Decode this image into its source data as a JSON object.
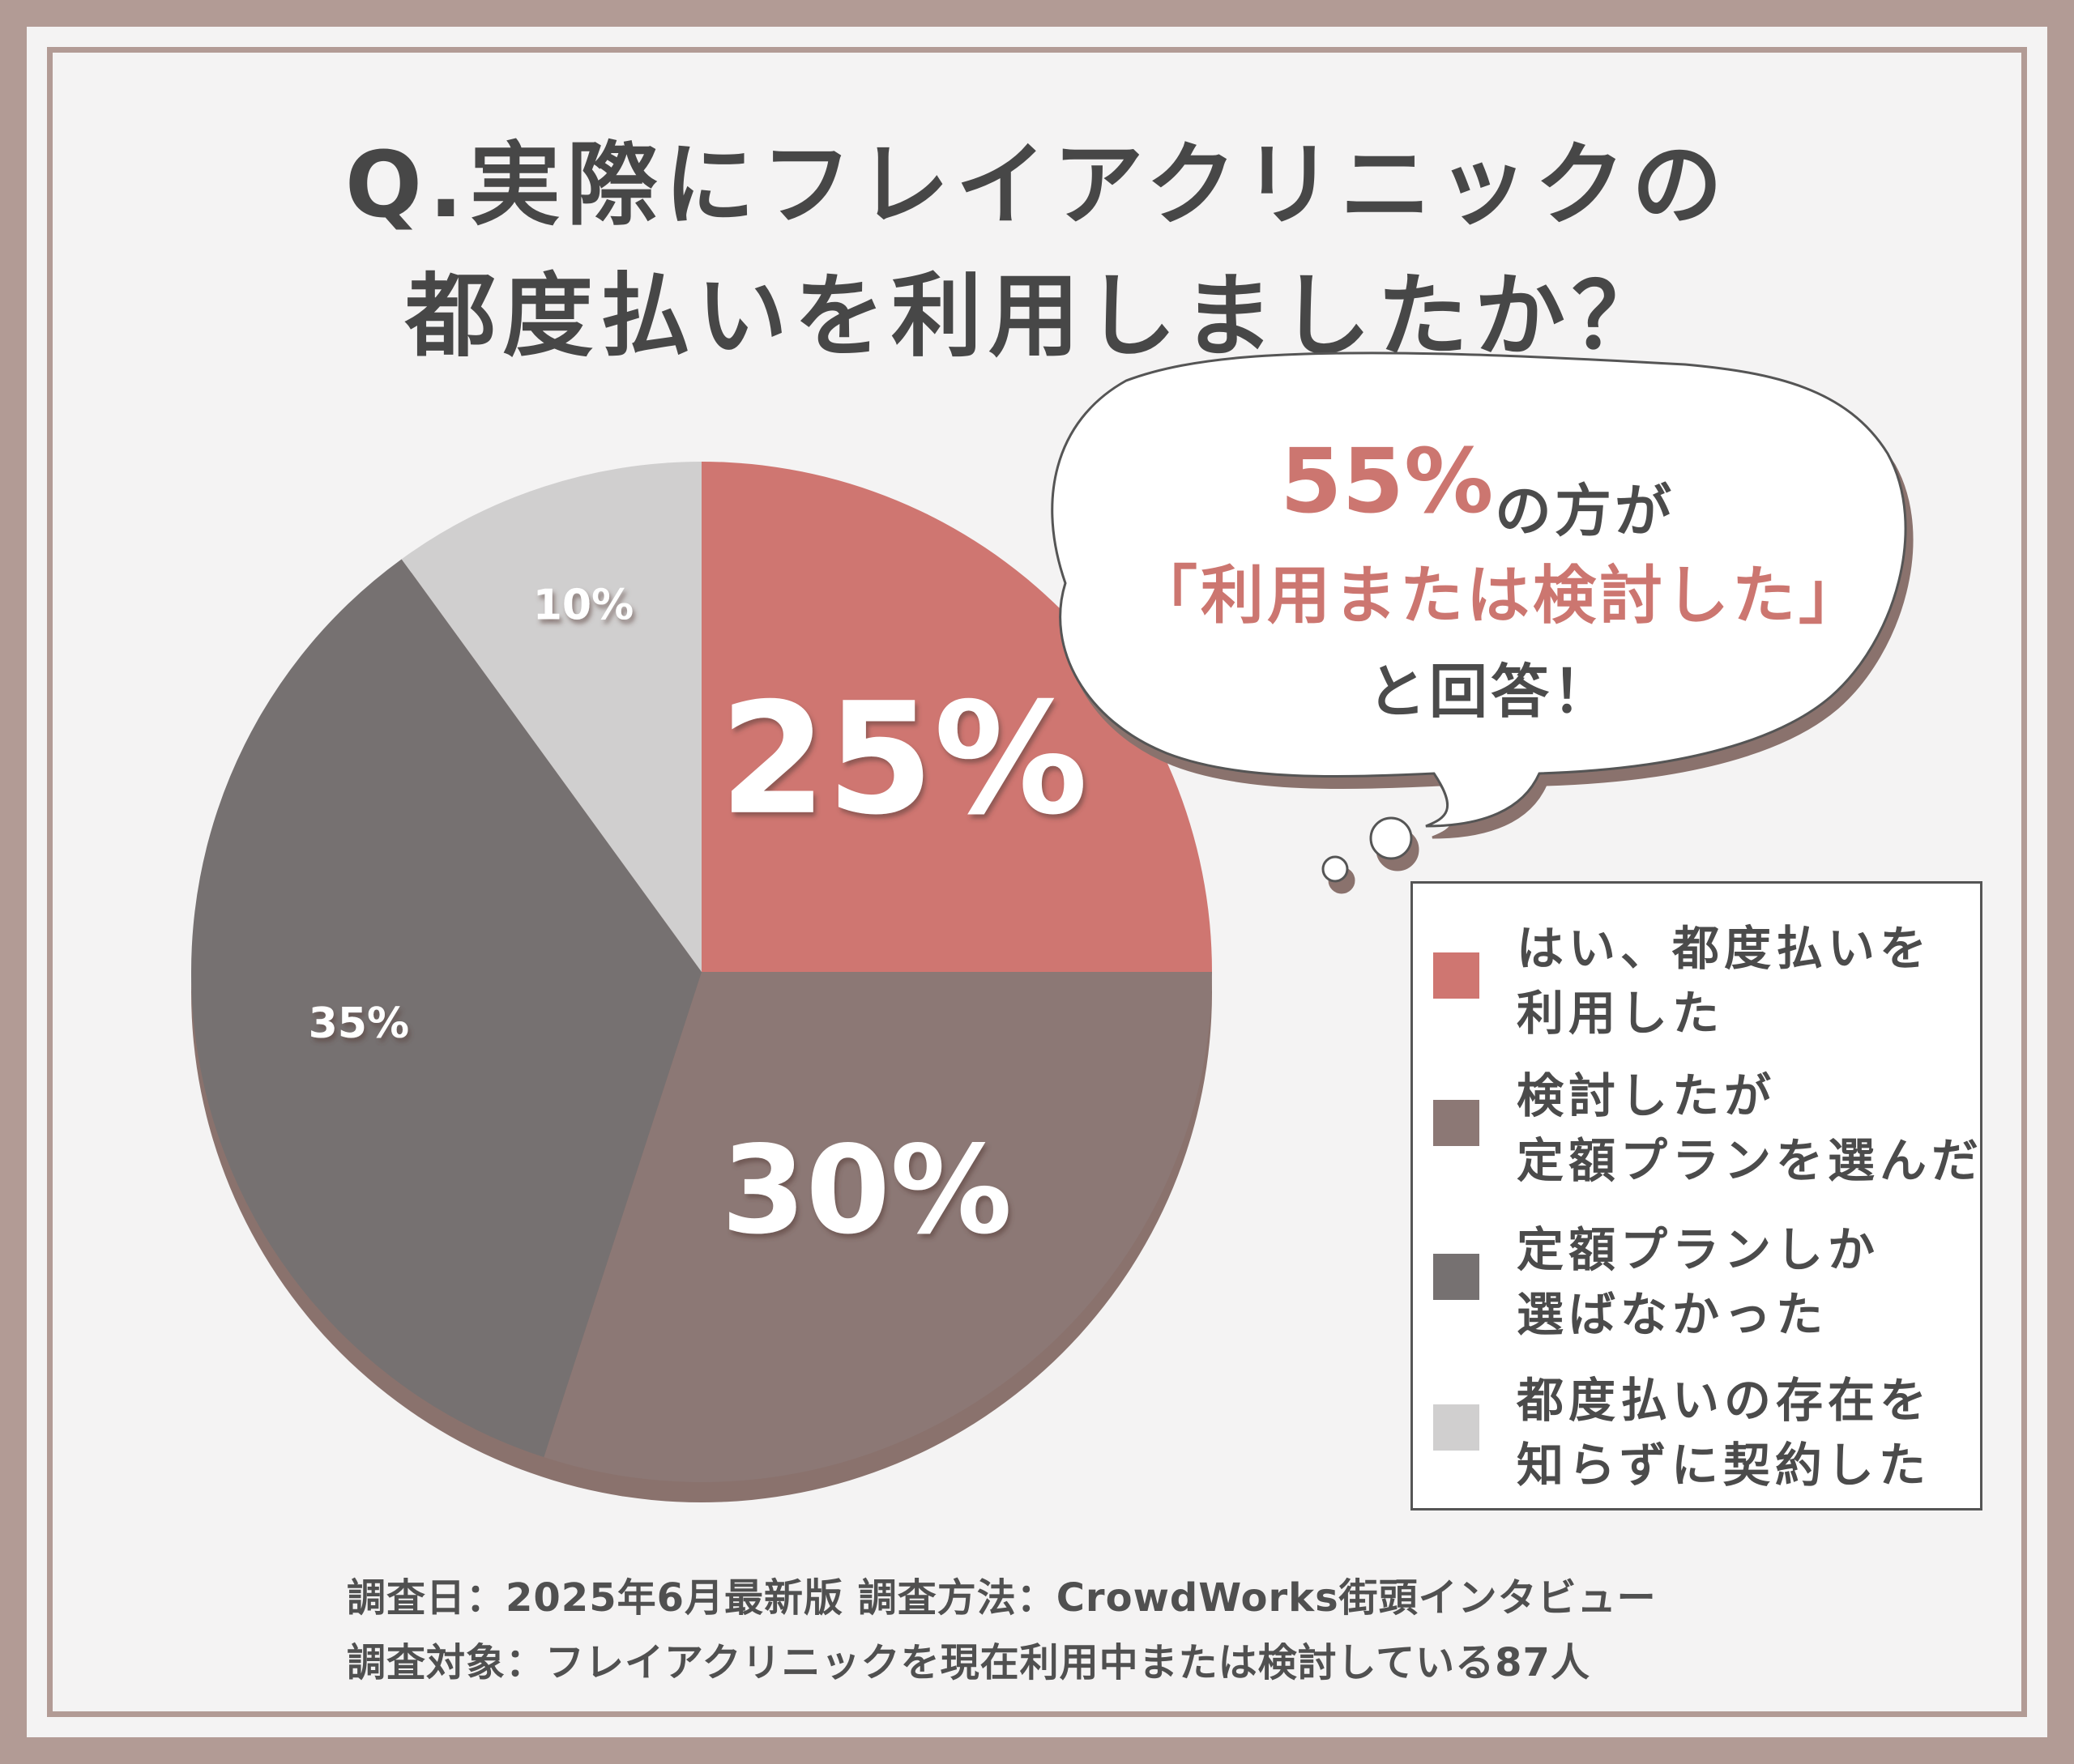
{
  "title": {
    "line1": "Q.実際にフレイアクリニックの",
    "line2": "都度払いを利用しましたか？"
  },
  "callout": {
    "percent": "55%",
    "line1_suffix": "の方が",
    "line2": "「利用または検討した」",
    "line3": "と回答！"
  },
  "chart_data": {
    "type": "pie",
    "categories": [
      "はい、都度払いを利用した",
      "検討したが定額プランを選んだ",
      "定額プランしか選ばなかった",
      "都度払いの存在を知らずに契約した"
    ],
    "values": [
      25,
      30,
      35,
      10
    ],
    "value_labels": [
      "25%",
      "30%",
      "35%",
      "10%"
    ],
    "colors": [
      "#cf7671",
      "#8c7875",
      "#767171",
      "#d0cfcf"
    ],
    "legend_placement": "right"
  },
  "legend": {
    "items": [
      {
        "lines": [
          "はい、都度払いを",
          "利用した"
        ],
        "color": "#cf7671"
      },
      {
        "lines": [
          "検討したが",
          "定額プランを選んだ"
        ],
        "color": "#8c7875"
      },
      {
        "lines": [
          "定額プランしか",
          "選ばなかった"
        ],
        "color": "#767171"
      },
      {
        "lines": [
          "都度払いの存在を",
          "知らずに契約した"
        ],
        "color": "#d0cfcf"
      }
    ]
  },
  "footnote": {
    "line1": "調査日：2025年6月最新版  調査方法：CrowdWorks街頭インタビュー",
    "line2": "調査対象：フレイアクリニックを現在利用中または検討している87人"
  }
}
